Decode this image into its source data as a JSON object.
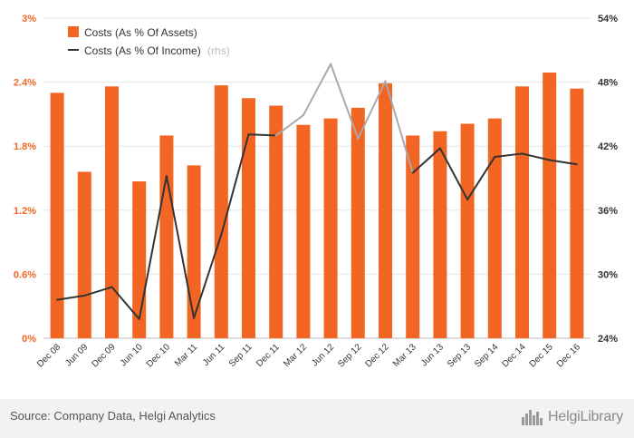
{
  "chart_data": {
    "type": "bar+line",
    "categories": [
      "Dec 08",
      "Jun 09",
      "Dec 09",
      "Jun 10",
      "Dec 10",
      "Mar 11",
      "Jun 11",
      "Sep 11",
      "Dec 11",
      "Mar 12",
      "Jun 12",
      "Sep 12",
      "Dec 12",
      "Mar 13",
      "Jun 13",
      "Sep 13",
      "Sep 14",
      "Dec 14",
      "Dec 15",
      "Dec 16"
    ],
    "series": [
      {
        "name": "Costs (As % Of Assets)",
        "type": "bar",
        "axis": "left",
        "color": "#f26522",
        "values": [
          2.3,
          1.56,
          2.36,
          1.47,
          1.9,
          1.62,
          2.37,
          2.25,
          2.18,
          2.0,
          2.06,
          2.16,
          2.39,
          1.9,
          1.94,
          2.01,
          2.06,
          2.36,
          2.49,
          2.34
        ]
      },
      {
        "name": "Costs (As % Of Income)",
        "type": "line",
        "axis": "right",
        "color": "#333333",
        "values": [
          27.6,
          28.0,
          28.8,
          25.8,
          39.2,
          25.9,
          33.7,
          43.1,
          43.0,
          44.9,
          49.7,
          42.7,
          48.1,
          39.5,
          41.8,
          37.0,
          41.0,
          41.3,
          40.7,
          40.3
        ]
      }
    ],
    "legend": {
      "position": "top-left",
      "rhs_note": "(rhs)"
    },
    "yaxis_left": {
      "ylim": [
        0,
        3
      ],
      "ticks": [
        "0%",
        "0.6%",
        "1.2%",
        "1.8%",
        "2.4%",
        "3%"
      ],
      "color": "#f26522"
    },
    "yaxis_right": {
      "ylim": [
        24,
        54
      ],
      "ticks": [
        "24%",
        "30%",
        "36%",
        "42%",
        "48%",
        "54%"
      ]
    },
    "grid": "horizontal"
  },
  "footer": {
    "source": "Source: Company Data, Helgi Analytics",
    "brand": "HelgiLibrary"
  }
}
